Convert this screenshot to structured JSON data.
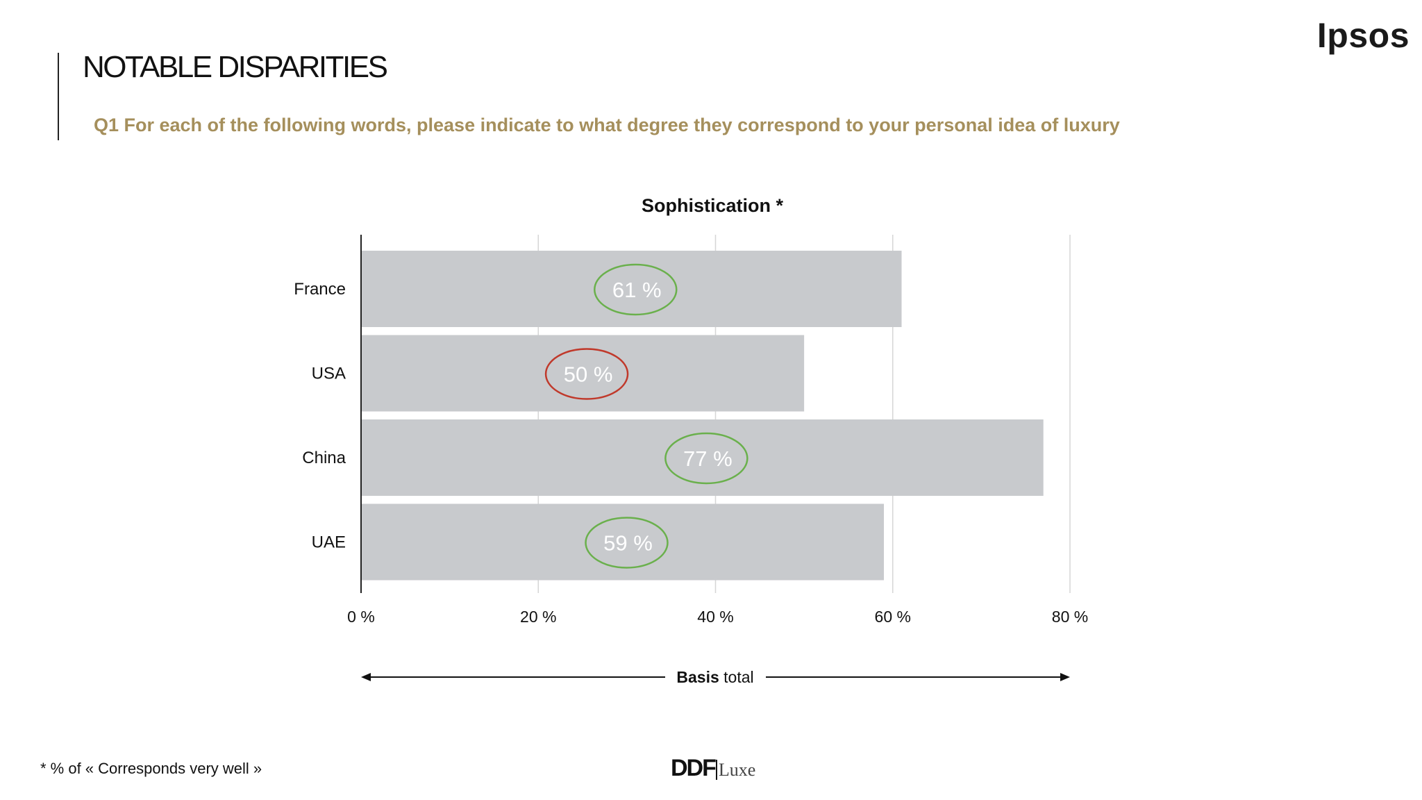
{
  "header": {
    "title": "NOTABLE DISPARITIES",
    "question": "Q1 For each of the following words, please indicate to what degree they correspond to your personal idea of luxury",
    "brand": "Ipsos"
  },
  "footer": {
    "footnote": "* % of « Corresponds very well »",
    "logo_main": "DDF",
    "logo_sub": "Luxe"
  },
  "colors": {
    "bar": "#c8cacd",
    "highlight_good": "#6ab04c",
    "highlight_bad": "#c0392b",
    "accent": "#a58f5c"
  },
  "chart_data": {
    "type": "bar",
    "orientation": "horizontal",
    "title": "Sophistication *",
    "categories": [
      "France",
      "USA",
      "China",
      "UAE"
    ],
    "values": [
      61,
      50,
      77,
      59
    ],
    "value_labels": [
      "61 %",
      "50 %",
      "77 %",
      "59 %"
    ],
    "highlights": [
      "good",
      "bad",
      "good",
      "good"
    ],
    "xlim": [
      0,
      80
    ],
    "ticks": [
      {
        "value": 0,
        "label": "0 %"
      },
      {
        "value": 20,
        "label": "20 %"
      },
      {
        "value": 40,
        "label": "40 %"
      },
      {
        "value": 60,
        "label": "60 %"
      },
      {
        "value": 80,
        "label": "80 %"
      }
    ],
    "grid": true,
    "basis_bold": "Basis",
    "basis_text": " total"
  }
}
